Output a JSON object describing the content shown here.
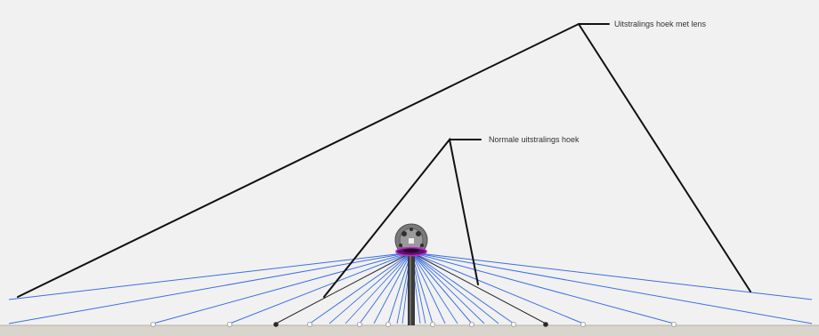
{
  "diagram": {
    "annotations": [
      {
        "id": "lens-angle",
        "text": "Uitstralings hoek met lens"
      },
      {
        "id": "normal-angle",
        "text": "Normale uitstralings hoek"
      }
    ],
    "colors": {
      "background": "#f1f1f1",
      "beam": "#3b6fe0",
      "leader": "#111111",
      "floor": "#d9d4cc",
      "pole": "#3b3b3b",
      "lamp_head": "#7a7a7a",
      "lens": "#7a1f88"
    },
    "icons": [
      "lamp-head-icon",
      "lens-icon",
      "pole-icon"
    ]
  }
}
